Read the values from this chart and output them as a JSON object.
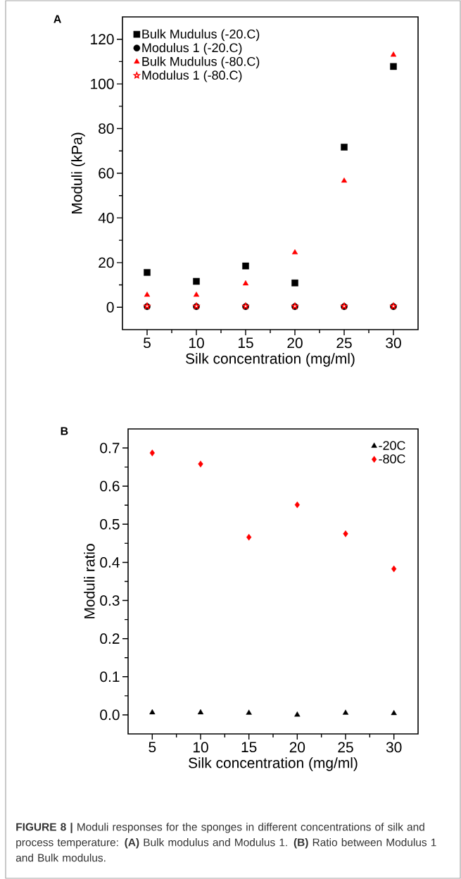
{
  "chart_data": [
    {
      "type": "scatter",
      "title": "A",
      "xlabel": "Silk concentration (mg/ml)",
      "ylabel": "Moduli (kPa)",
      "x": [
        5,
        10,
        15,
        20,
        25,
        30
      ],
      "xlim": [
        2.5,
        32.5
      ],
      "xticks": [
        5,
        10,
        15,
        20,
        25,
        30
      ],
      "ylim": [
        -10,
        130
      ],
      "yticks": [
        0,
        20,
        40,
        60,
        80,
        100,
        120
      ],
      "legend": "top left",
      "series": [
        {
          "name": "Bulk Mudulus (-20.C)",
          "color": "#000000",
          "marker": "square",
          "values": [
            15.6,
            11.6,
            18.5,
            10.9,
            71.7,
            107.8
          ]
        },
        {
          "name": "Modulus 1 (-20.C)",
          "color": "#000000",
          "marker": "circle",
          "values": [
            0.3,
            0.3,
            0.3,
            0.3,
            0.3,
            0.3
          ]
        },
        {
          "name": "Bulk Mudulus (-80.C)",
          "color": "#ff0000",
          "marker": "triangle",
          "values": [
            5.5,
            5.5,
            10.6,
            24.5,
            56.6,
            113
          ]
        },
        {
          "name": "Modulus 1 (-80.C)",
          "color": "#ff0000",
          "marker": "star",
          "values": [
            0.5,
            0.5,
            0.5,
            0.5,
            0.5,
            0.5
          ]
        }
      ]
    },
    {
      "type": "scatter",
      "title": "B",
      "xlabel": "Silk concentration (mg/ml)",
      "ylabel": "Moduli ratio",
      "x": [
        5,
        10,
        15,
        20,
        25,
        30
      ],
      "xlim": [
        2.5,
        32.5
      ],
      "xticks": [
        5,
        10,
        15,
        20,
        25,
        30
      ],
      "ylim": [
        -0.05,
        0.75
      ],
      "yticks": [
        {
          "value": 0,
          "label": "0.0"
        },
        0.1,
        0.2,
        0.3,
        0.4,
        0.5,
        0.6,
        0.7
      ],
      "legend": "top right",
      "series": [
        {
          "name": "-20C",
          "color": "#000000",
          "marker": "triangle",
          "values": [
            0.006,
            0.006,
            0.005,
            0.0,
            0.005,
            0.004
          ]
        },
        {
          "name": "-80C",
          "color": "#ff0000",
          "marker": "diamond",
          "values": [
            0.687,
            0.658,
            0.466,
            0.551,
            0.475,
            0.383
          ]
        }
      ],
      "annotations": [
        "**FIGURE 8 |** Moduli responses for the sponges in different concentrations of silk and process temperature: **(A)** Bulk modulus and Modulus 1. **(B)** Ratio between Modulus 1 and Bulk modulus."
      ]
    }
  ]
}
